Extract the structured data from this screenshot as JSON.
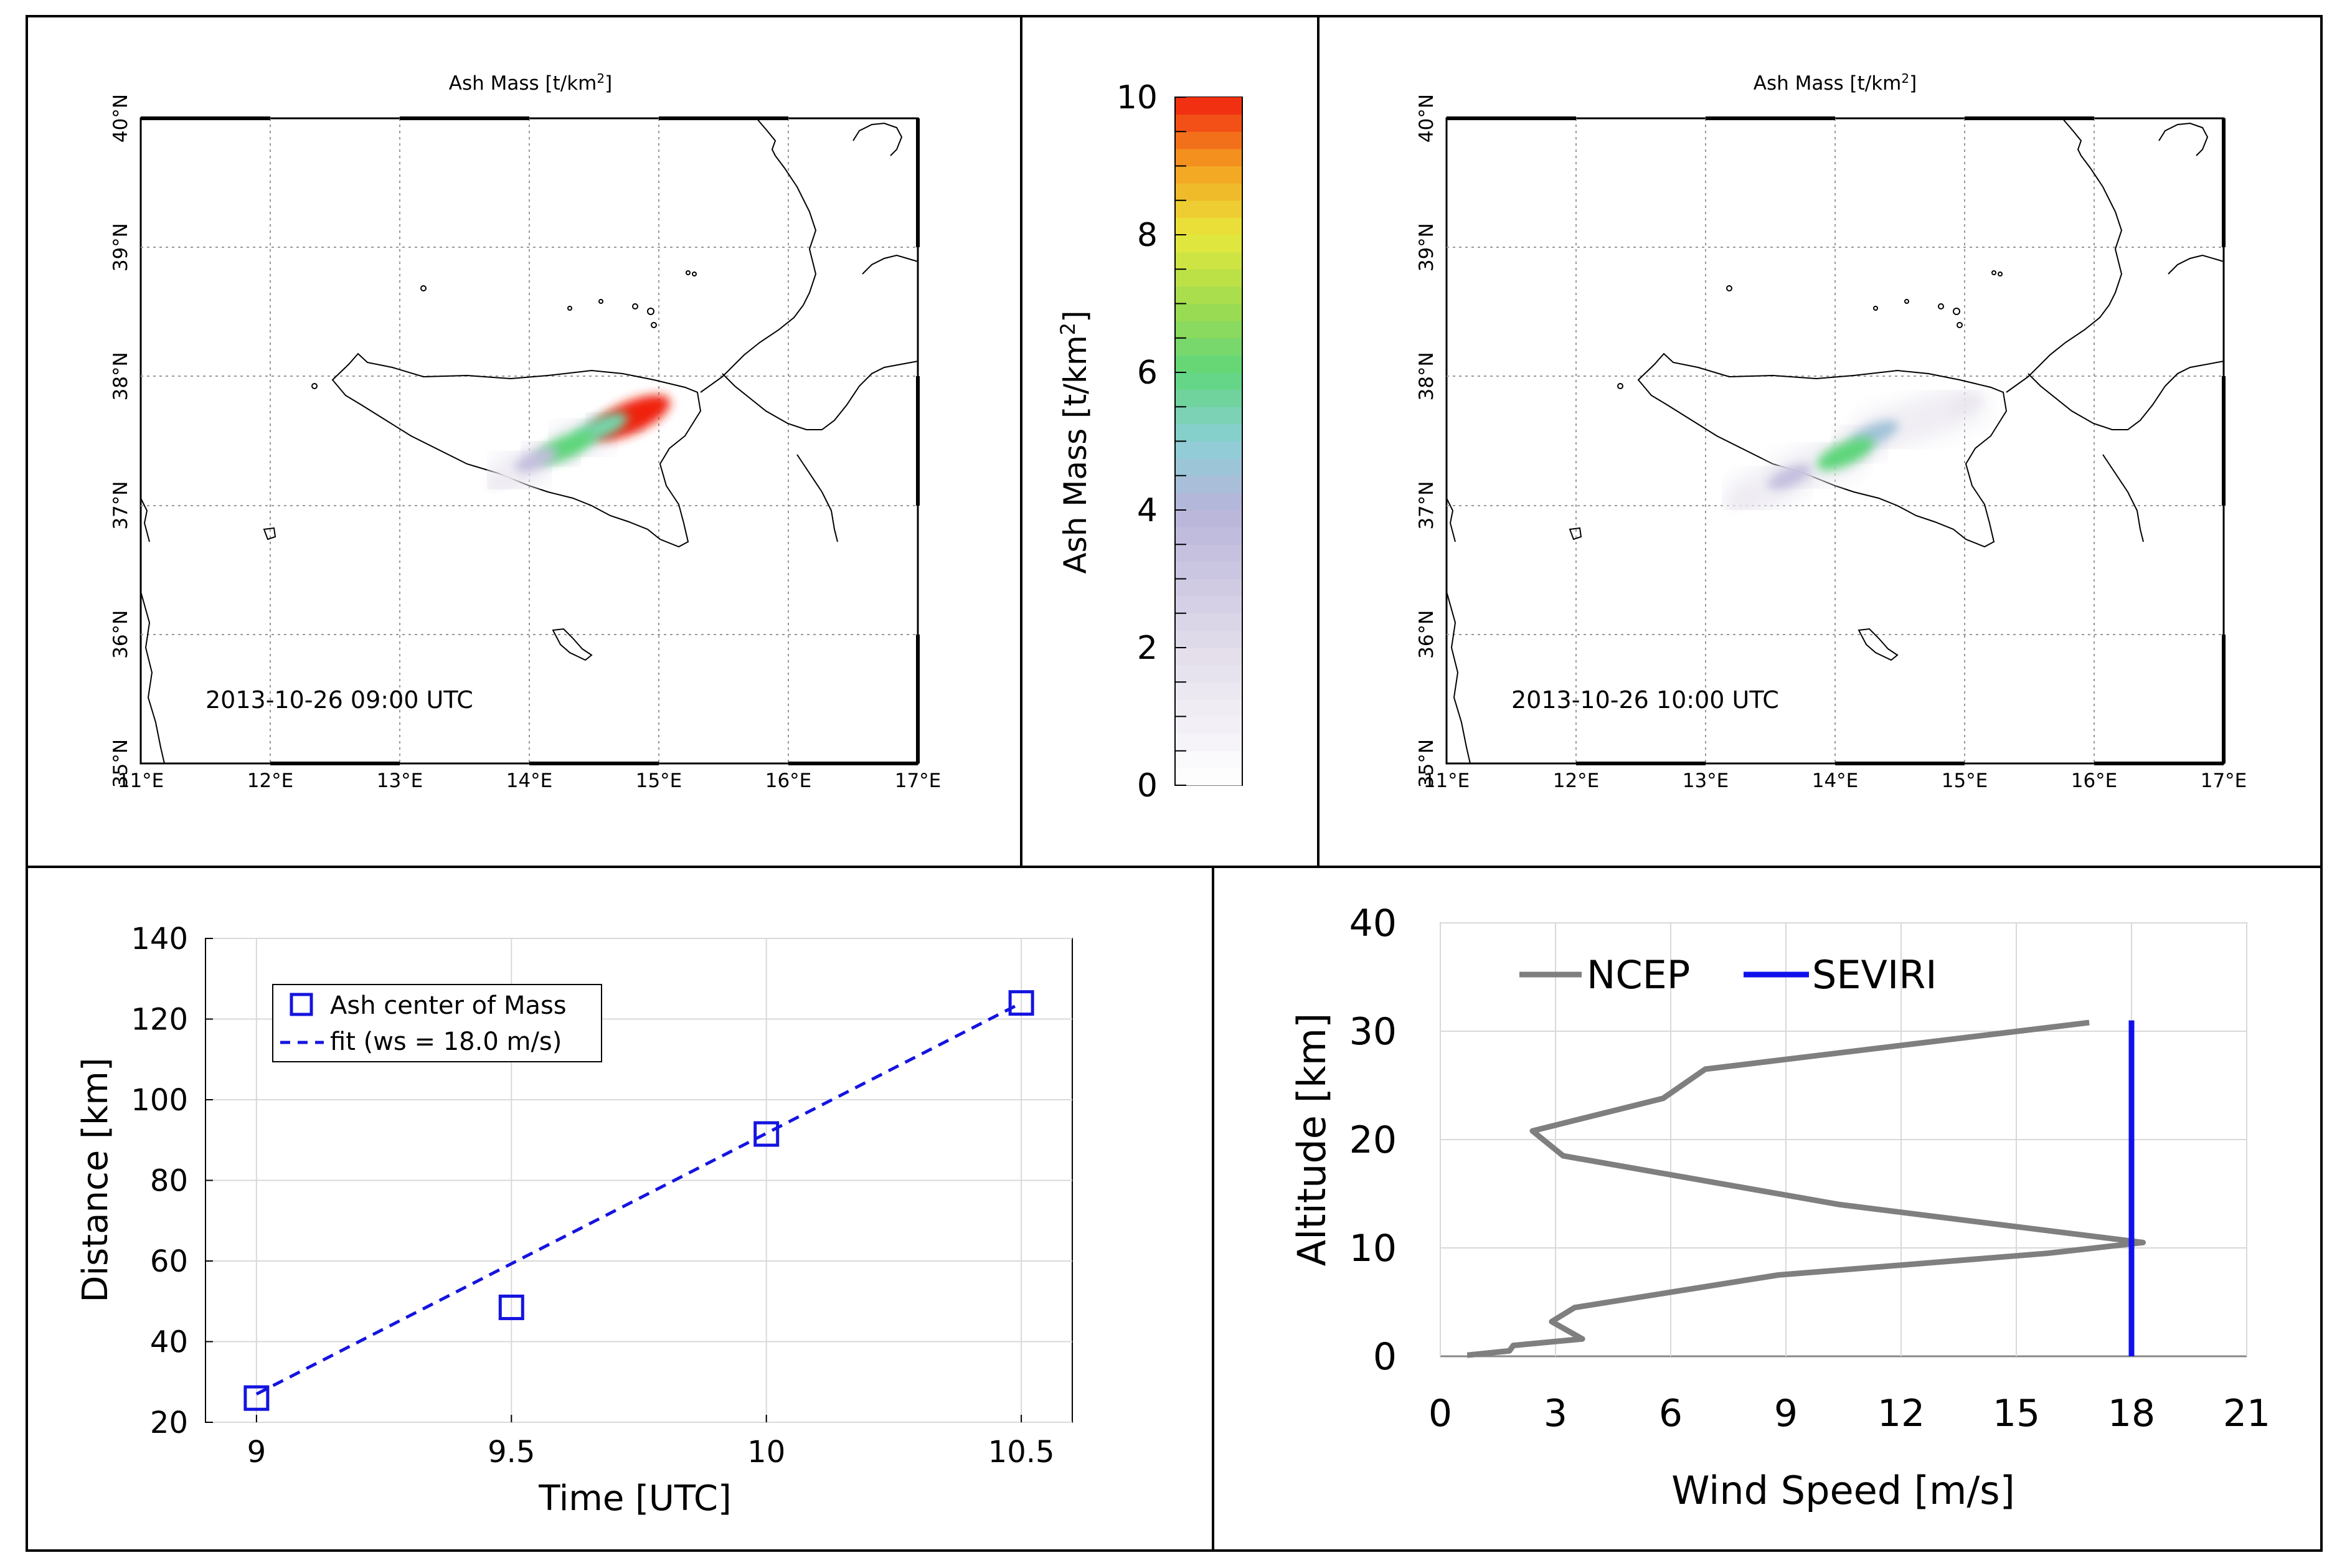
{
  "chart_data": [
    {
      "type": "heatmap",
      "panel": "map-left",
      "title": "Ash Mass [t/km²]",
      "timestamp": "2013-10-26 09:00 UTC",
      "x_ticks": [
        "11°E",
        "12°E",
        "13°E",
        "14°E",
        "15°E",
        "16°E",
        "17°E"
      ],
      "y_ticks": [
        "35°N",
        "36°N",
        "37°N",
        "38°N",
        "39°N",
        "40°N"
      ],
      "xlim": [
        11,
        17
      ],
      "ylim": [
        35,
        40
      ],
      "plume": [
        {
          "lon": 14.78,
          "lat": 37.68,
          "value": 10
        },
        {
          "lon": 14.55,
          "lat": 37.6,
          "value": 5.5
        },
        {
          "lon": 14.28,
          "lat": 37.45,
          "value": 6
        },
        {
          "lon": 14.05,
          "lat": 37.35,
          "value": 3.5
        },
        {
          "lon": 13.8,
          "lat": 37.2,
          "value": 1.2
        }
      ]
    },
    {
      "type": "colorbar",
      "panel": "colorbar",
      "label": "Ash Mass [t/km²]",
      "ticks": [
        "0",
        "2",
        "4",
        "6",
        "8",
        "10"
      ],
      "range": [
        0,
        10
      ],
      "stops": [
        {
          "v": 0,
          "color": "#ffffff"
        },
        {
          "v": 2,
          "color": "#e2ddea"
        },
        {
          "v": 4,
          "color": "#b8b4da"
        },
        {
          "v": 5,
          "color": "#8ccfd6"
        },
        {
          "v": 6,
          "color": "#5fd67c"
        },
        {
          "v": 7,
          "color": "#a2dc4e"
        },
        {
          "v": 8,
          "color": "#e8e83c"
        },
        {
          "v": 9,
          "color": "#f5a020"
        },
        {
          "v": 10,
          "color": "#f02010"
        }
      ]
    },
    {
      "type": "heatmap",
      "panel": "map-right",
      "title": "Ash Mass [t/km²]",
      "timestamp": "2013-10-26 10:00 UTC",
      "x_ticks": [
        "11°E",
        "12°E",
        "13°E",
        "14°E",
        "15°E",
        "16°E",
        "17°E"
      ],
      "y_ticks": [
        "35°N",
        "36°N",
        "37°N",
        "38°N",
        "39°N",
        "40°N"
      ],
      "xlim": [
        11,
        17
      ],
      "ylim": [
        35,
        40
      ],
      "plume": [
        {
          "lon": 15.0,
          "lat": 37.78,
          "value": 1.5
        },
        {
          "lon": 14.3,
          "lat": 37.55,
          "value": 4.5
        },
        {
          "lon": 14.08,
          "lat": 37.4,
          "value": 6
        },
        {
          "lon": 13.65,
          "lat": 37.22,
          "value": 3.5
        },
        {
          "lon": 13.3,
          "lat": 37.05,
          "value": 1.2
        }
      ]
    },
    {
      "type": "scatter",
      "panel": "distance-time",
      "xlabel": "Time [UTC]",
      "ylabel": "Distance [km]",
      "xlim": [
        8.9,
        10.6
      ],
      "ylim": [
        20,
        140
      ],
      "x_ticks": [
        9,
        9.5,
        10,
        10.5
      ],
      "y_ticks": [
        20,
        40,
        60,
        80,
        100,
        120,
        140
      ],
      "grid": true,
      "legend_position": "top-left",
      "series": [
        {
          "name": "Ash center of Mass",
          "style": "markers",
          "color": "#1414e0",
          "x": [
            9,
            9.5,
            10,
            10.5
          ],
          "y": [
            26,
            48.5,
            91.5,
            124
          ]
        },
        {
          "name": "fit (ws = 18.0 m/s)",
          "style": "dashed",
          "color": "#1414e0",
          "x": [
            9,
            10.5
          ],
          "y": [
            27,
            124
          ]
        }
      ]
    },
    {
      "type": "line",
      "panel": "wind-profile",
      "xlabel": "Wind Speed [m/s]",
      "ylabel": "Altitude [km]",
      "xlim": [
        0,
        21
      ],
      "ylim": [
        0,
        40
      ],
      "x_ticks": [
        0,
        3,
        6,
        9,
        12,
        15,
        18,
        21
      ],
      "y_ticks": [
        0,
        10,
        20,
        30,
        40
      ],
      "grid": true,
      "legend_position": "top",
      "series": [
        {
          "name": "NCEP",
          "color": "#7f7f7f",
          "x": [
            0.7,
            1.8,
            1.9,
            3.7,
            2.9,
            3.5,
            5.8,
            8.8,
            15.8,
            18.3,
            10.4,
            3.2,
            2.4,
            5.8,
            6.9,
            16.9
          ],
          "y": [
            0.1,
            0.5,
            1.0,
            1.6,
            3.2,
            4.5,
            5.8,
            7.5,
            9.5,
            10.5,
            14.0,
            18.5,
            20.8,
            23.8,
            26.5,
            30.8
          ]
        },
        {
          "name": "SEVIRI",
          "color": "#1010ee",
          "x": [
            18.0,
            18.0
          ],
          "y": [
            0,
            31
          ]
        }
      ]
    }
  ]
}
